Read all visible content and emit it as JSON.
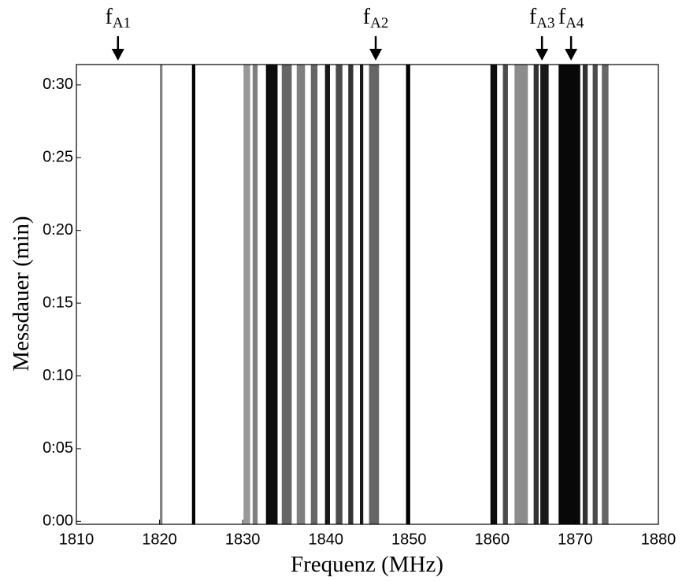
{
  "chart_data": {
    "type": "spectrogram",
    "x_label": "Frequenz (MHz)",
    "y_label": "Messdauer (min)",
    "xlim": [
      1810,
      1880
    ],
    "xticks": [
      1810,
      1820,
      1830,
      1840,
      1850,
      1860,
      1870,
      1880
    ],
    "ylim": [
      -0.2,
      31.4
    ],
    "yticks": [
      {
        "value": 0,
        "label": "0:00"
      },
      {
        "value": 5,
        "label": "0:05"
      },
      {
        "value": 10,
        "label": "0:10"
      },
      {
        "value": 15,
        "label": "0:15"
      },
      {
        "value": 20,
        "label": "0:20"
      },
      {
        "value": 25,
        "label": "0:25"
      },
      {
        "value": 30,
        "label": "0:30"
      }
    ],
    "color": "#000000",
    "x": [
      1820.2,
      1824.1,
      1830.5,
      1831.5,
      1833.5,
      1835.3,
      1837,
      1838.6,
      1840.2,
      1841.6,
      1843,
      1844.3,
      1845.8,
      1849.9,
      1860.2,
      1861.6,
      1863.5,
      1865.3,
      1866.3,
      1869.3,
      1871.2,
      1872.4,
      1873.6
    ],
    "width": [
      0.3,
      0.4,
      0.8,
      0.6,
      1.4,
      1.2,
      1.0,
      0.8,
      0.6,
      0.8,
      0.6,
      0.4,
      1.2,
      0.5,
      0.8,
      0.6,
      1.6,
      0.6,
      1.0,
      2.6,
      0.6,
      0.6,
      0.8
    ],
    "values": [
      0.5,
      1.0,
      0.4,
      0.5,
      0.95,
      0.6,
      0.5,
      0.6,
      0.9,
      0.7,
      0.8,
      0.9,
      0.6,
      1.0,
      0.95,
      0.7,
      0.45,
      0.8,
      0.9,
      0.97,
      0.8,
      0.7,
      0.6
    ],
    "annotations": [
      {
        "text": "f",
        "subscript": "A1",
        "x": 1815
      },
      {
        "text": "f",
        "subscript": "A2",
        "x": 1846
      },
      {
        "text": "f",
        "subscript": "A3",
        "x": 1866
      },
      {
        "text": "f",
        "subscript": "A4",
        "x": 1869.5
      }
    ]
  }
}
